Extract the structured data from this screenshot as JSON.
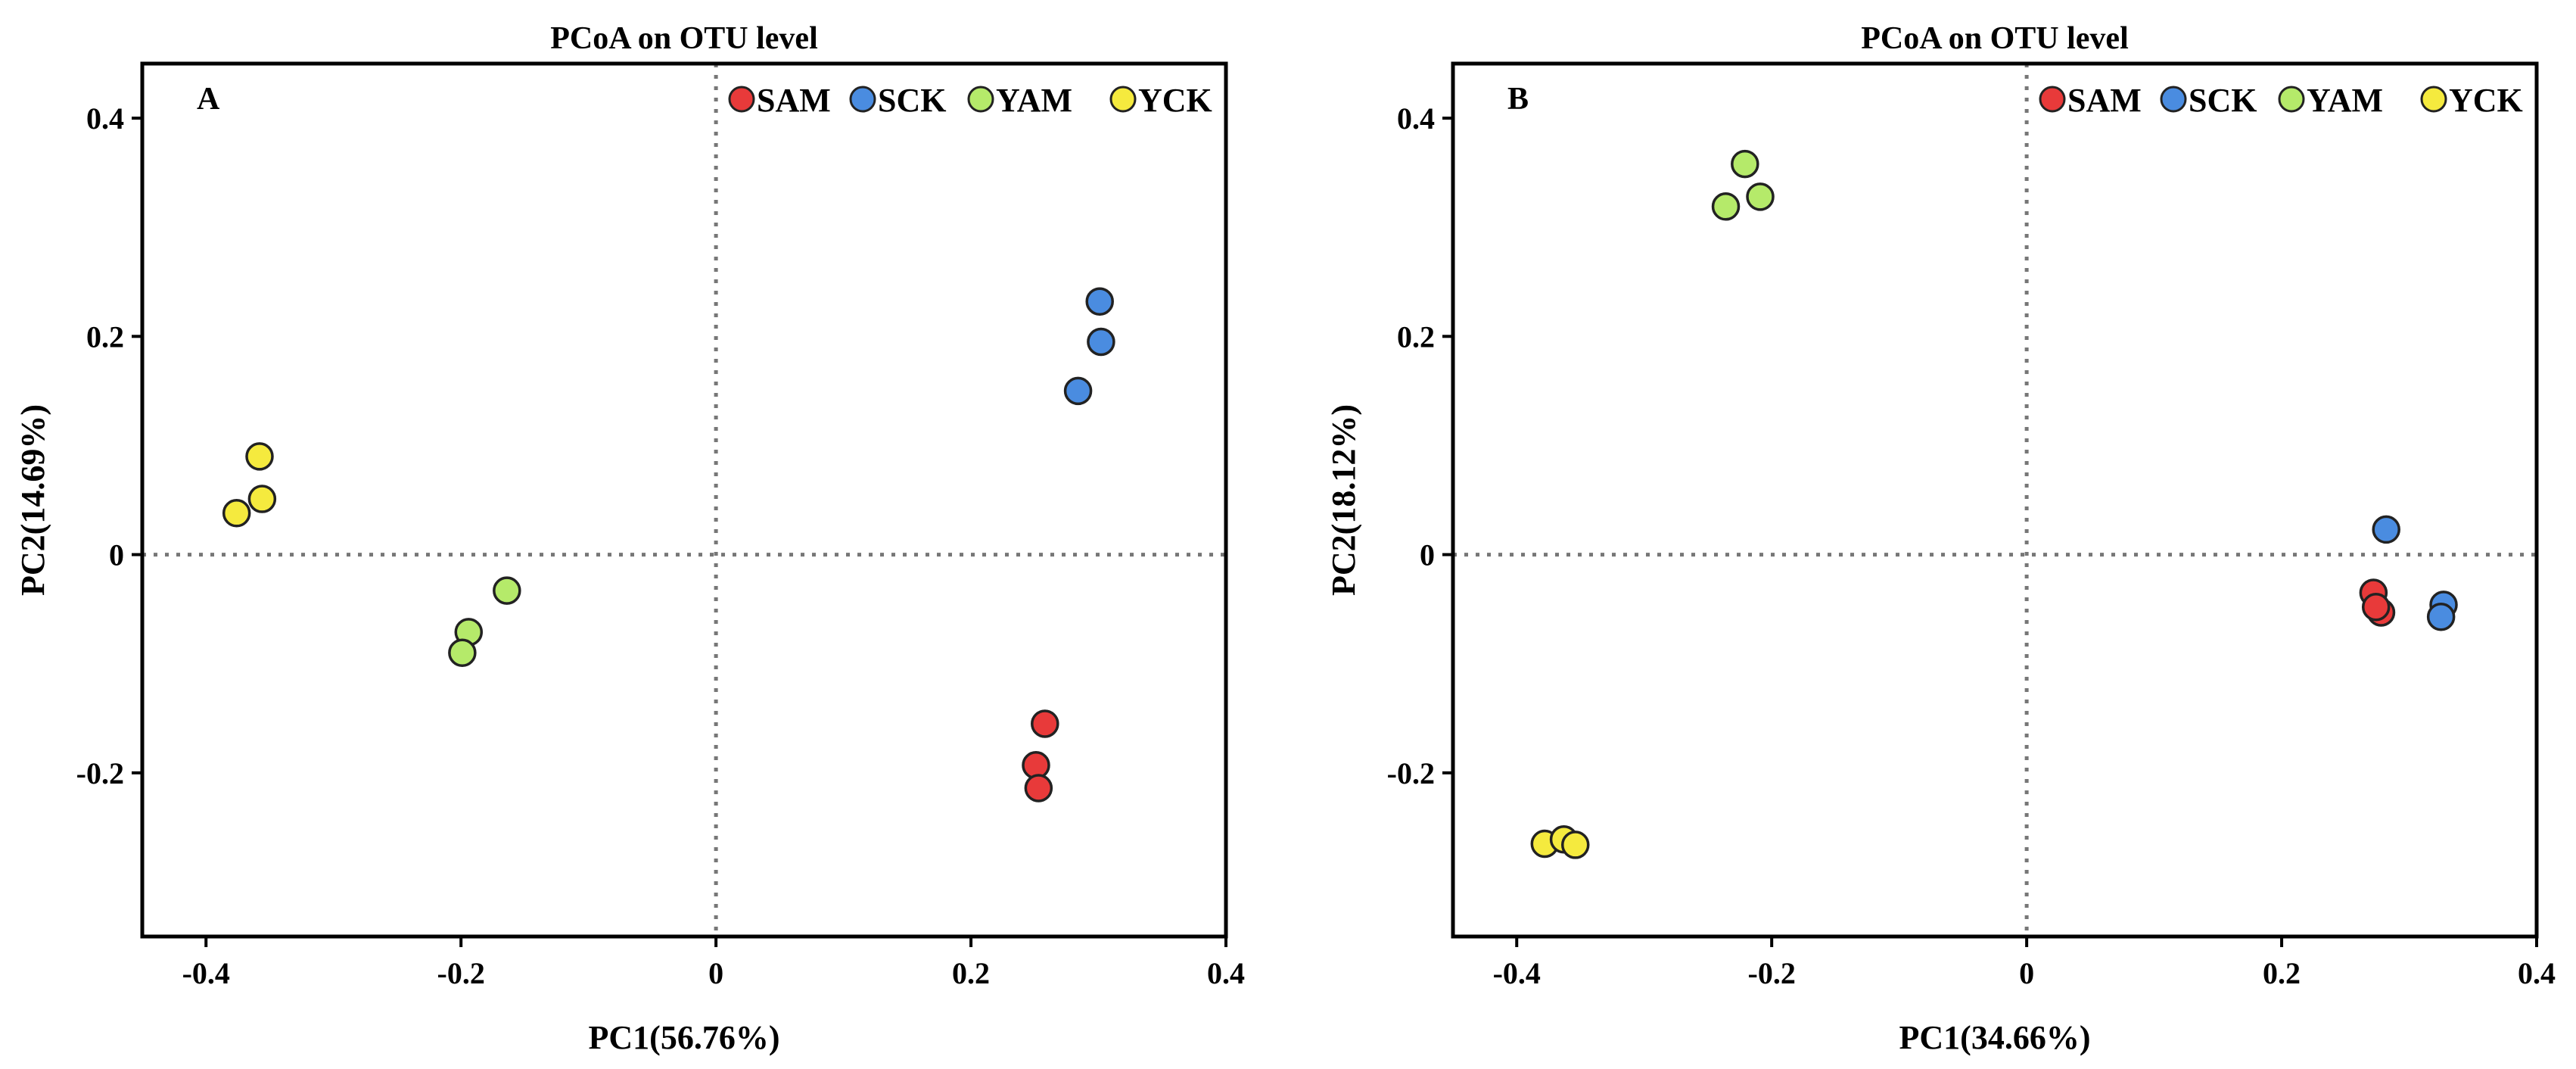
{
  "chart_data": [
    {
      "type": "scatter",
      "title": "PCoA on OTU level",
      "panel_label": "A",
      "xlabel": "PC1(56.76%)",
      "ylabel": "PC2(14.69%)",
      "xlim": [
        -0.45,
        0.4
      ],
      "ylim": [
        -0.35,
        0.45
      ],
      "xticks": [
        -0.4,
        -0.2,
        0,
        0.2,
        0.4
      ],
      "xtick_labels": [
        "-0.4",
        "-0.2",
        "0",
        "0.2",
        "0.4"
      ],
      "yticks": [
        -0.2,
        0,
        0.2,
        0.4
      ],
      "ytick_labels": [
        "-0.2",
        "0",
        "0.2",
        "0.4"
      ],
      "reference_lines": {
        "x": 0,
        "y": 0,
        "style": "dotted"
      },
      "legend_position": "top-right",
      "series": [
        {
          "name": "SAM",
          "color": "#e83a3a",
          "points": [
            [
              0.258,
              -0.155
            ],
            [
              0.251,
              -0.193
            ],
            [
              0.253,
              -0.214
            ]
          ]
        },
        {
          "name": "SCK",
          "color": "#4a8ce0",
          "points": [
            [
              0.301,
              0.232
            ],
            [
              0.302,
              0.195
            ],
            [
              0.284,
              0.15
            ]
          ]
        },
        {
          "name": "YAM",
          "color": "#b5ea6a",
          "points": [
            [
              -0.164,
              -0.033
            ],
            [
              -0.194,
              -0.071
            ],
            [
              -0.199,
              -0.09
            ]
          ]
        },
        {
          "name": "YCK",
          "color": "#f5ea3e",
          "points": [
            [
              -0.358,
              0.09
            ],
            [
              -0.356,
              0.051
            ],
            [
              -0.376,
              0.038
            ]
          ]
        }
      ]
    },
    {
      "type": "scatter",
      "title": "PCoA on OTU level",
      "panel_label": "B",
      "xlabel": "PC1(34.66%)",
      "ylabel": "PC2(18.12%)",
      "xlim": [
        -0.45,
        0.4
      ],
      "ylim": [
        -0.35,
        0.45
      ],
      "xticks": [
        -0.4,
        -0.2,
        0,
        0.2,
        0.4
      ],
      "xtick_labels": [
        "-0.4",
        "-0.2",
        "0",
        "0.2",
        "0.4"
      ],
      "yticks": [
        -0.2,
        0,
        0.2,
        0.4
      ],
      "ytick_labels": [
        "-0.2",
        "0",
        "0.2",
        "0.4"
      ],
      "reference_lines": {
        "x": 0,
        "y": 0,
        "style": "dotted"
      },
      "legend_position": "top-right",
      "series": [
        {
          "name": "SAM",
          "color": "#e83a3a",
          "points": [
            [
              0.272,
              -0.035
            ],
            [
              0.278,
              -0.053
            ],
            [
              0.274,
              -0.048
            ]
          ]
        },
        {
          "name": "SCK",
          "color": "#4a8ce0",
          "points": [
            [
              0.282,
              0.023
            ],
            [
              0.327,
              -0.046
            ],
            [
              0.325,
              -0.057
            ]
          ]
        },
        {
          "name": "YAM",
          "color": "#b5ea6a",
          "points": [
            [
              -0.221,
              0.358
            ],
            [
              -0.209,
              0.328
            ],
            [
              -0.236,
              0.319
            ]
          ]
        },
        {
          "name": "YCK",
          "color": "#f5ea3e",
          "points": [
            [
              -0.378,
              -0.265
            ],
            [
              -0.363,
              -0.261
            ],
            [
              -0.354,
              -0.266
            ]
          ]
        }
      ]
    }
  ]
}
